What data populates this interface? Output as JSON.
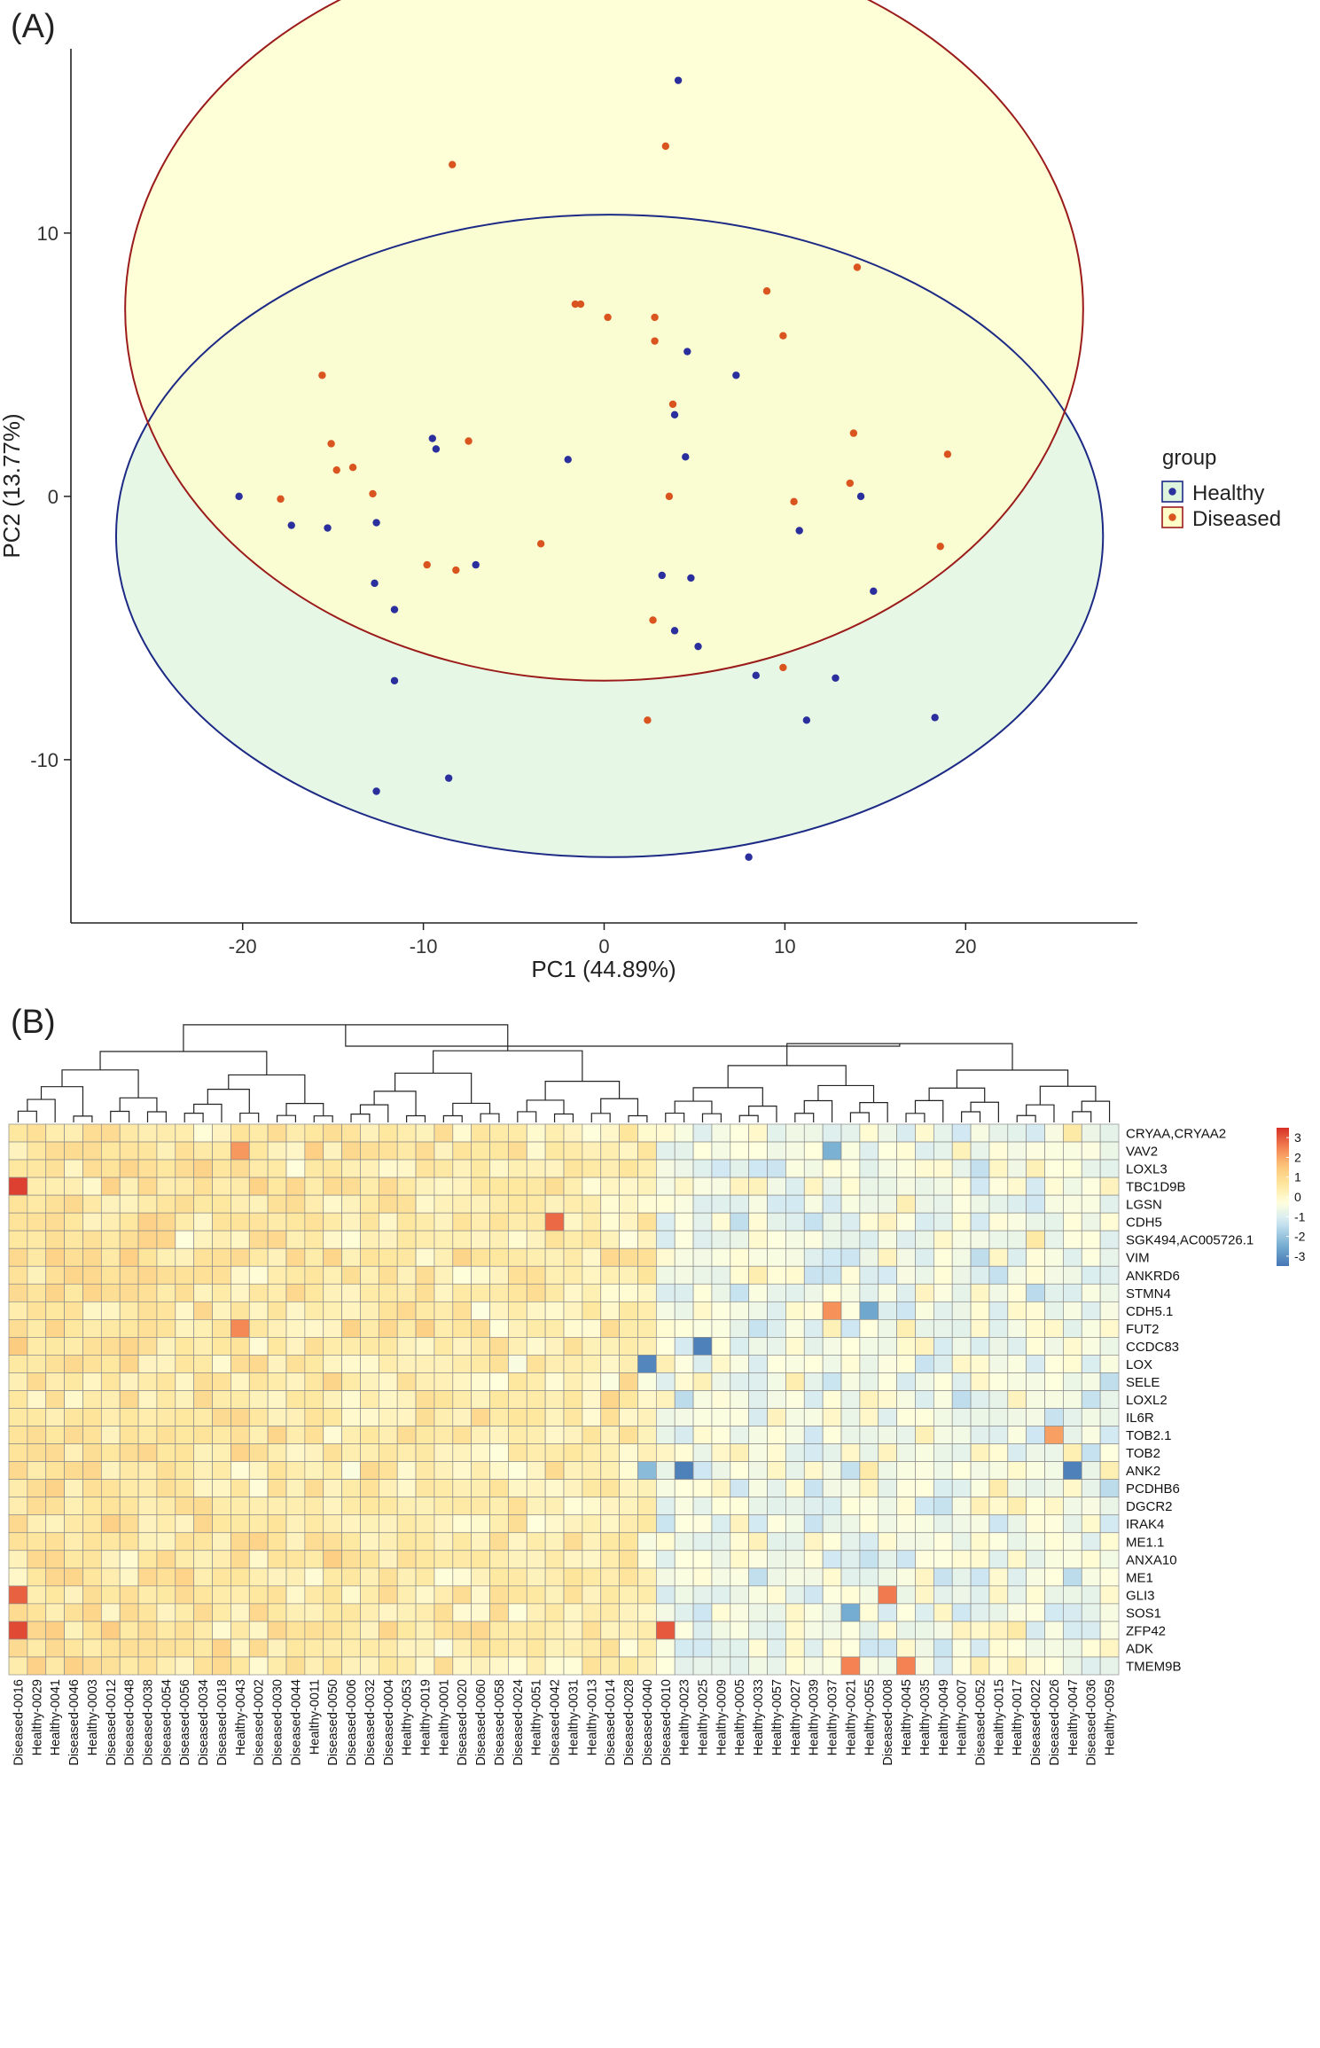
{
  "chart_data": [
    {
      "type": "scatter",
      "panel_label": "(A)",
      "xlabel": "PC1 (44.89%)",
      "ylabel": "PC2 (13.77%)",
      "xlim": [
        -29.5,
        29.5
      ],
      "ylim": [
        -16.2,
        17
      ],
      "xticks": [
        -20,
        -10,
        0,
        10,
        20
      ],
      "xtick_labels": [
        "-20",
        "-10",
        "0",
        "10",
        "20"
      ],
      "yticks": [
        -10,
        0,
        10
      ],
      "ytick_labels": [
        "-10",
        "0",
        "10"
      ],
      "grid": false,
      "legend_title": "group",
      "legend_position": "right",
      "series": [
        {
          "name": "Healthy",
          "color": "#2b2f9e",
          "ellipse_stroke": "#1c2a85",
          "ellipse_fill": "#dff4dc",
          "ellipse": {
            "cx": 0.3,
            "cy": -1.5,
            "rx": 27.3,
            "ry": 12.2
          },
          "points": [
            [
              4.1,
              15.8
            ],
            [
              -20.2,
              0.0
            ],
            [
              -17.3,
              -1.1
            ],
            [
              -15.3,
              -1.2
            ],
            [
              -12.6,
              -1.0
            ],
            [
              -9.5,
              2.2
            ],
            [
              -9.3,
              1.8
            ],
            [
              -12.7,
              -3.3
            ],
            [
              -11.6,
              -4.3
            ],
            [
              -11.6,
              -7.0
            ],
            [
              -12.6,
              -11.2
            ],
            [
              -8.6,
              -10.7
            ],
            [
              -7.1,
              -2.6
            ],
            [
              -2.0,
              1.4
            ],
            [
              3.2,
              -3.0
            ],
            [
              3.9,
              -5.1
            ],
            [
              4.5,
              1.5
            ],
            [
              4.6,
              5.5
            ],
            [
              4.8,
              -3.1
            ],
            [
              5.2,
              -5.7
            ],
            [
              3.9,
              3.1
            ],
            [
              7.3,
              4.6
            ],
            [
              8.4,
              -6.8
            ],
            [
              10.8,
              -1.3
            ],
            [
              11.2,
              -8.5
            ],
            [
              12.8,
              -6.9
            ],
            [
              14.2,
              0.0
            ],
            [
              14.9,
              -3.6
            ],
            [
              18.3,
              -8.4
            ],
            [
              8.0,
              -13.7
            ]
          ]
        },
        {
          "name": "Diseased",
          "color": "#d9541e",
          "ellipse_stroke": "#9b1b1b",
          "ellipse_fill": "#ffffc9",
          "ellipse": {
            "cx": 0.0,
            "cy": 7.1,
            "rx": 26.5,
            "ry": 14.1
          },
          "points": [
            [
              -8.4,
              12.6
            ],
            [
              3.4,
              13.3
            ],
            [
              14.0,
              8.7
            ],
            [
              9.0,
              7.8
            ],
            [
              9.9,
              6.1
            ],
            [
              -1.6,
              7.3
            ],
            [
              -1.3,
              7.3
            ],
            [
              0.2,
              6.8
            ],
            [
              2.8,
              6.8
            ],
            [
              2.8,
              5.9
            ],
            [
              -15.6,
              4.6
            ],
            [
              -15.1,
              2.0
            ],
            [
              -14.8,
              1.0
            ],
            [
              -13.9,
              1.1
            ],
            [
              -7.5,
              2.1
            ],
            [
              -12.8,
              0.1
            ],
            [
              -17.9,
              -0.1
            ],
            [
              3.8,
              3.5
            ],
            [
              3.6,
              0.0
            ],
            [
              10.5,
              -0.2
            ],
            [
              13.8,
              2.4
            ],
            [
              13.6,
              0.5
            ],
            [
              19.0,
              1.6
            ],
            [
              -9.8,
              -2.6
            ],
            [
              -8.2,
              -2.8
            ],
            [
              -3.5,
              -1.8
            ],
            [
              2.7,
              -4.7
            ],
            [
              18.6,
              -1.9
            ],
            [
              9.9,
              -6.5
            ],
            [
              2.4,
              -8.5
            ]
          ]
        }
      ]
    },
    {
      "type": "heatmap",
      "panel_label": "(B)",
      "scale_min": -3.5,
      "scale_max": 3.5,
      "legend_ticks": [
        3,
        2,
        1,
        0,
        -1,
        -2,
        -3
      ],
      "legend_tick_labels": [
        "3",
        "2",
        "1",
        "0",
        "-1",
        "-2",
        "-3"
      ],
      "rows": [
        "CRYAA,CRYAA2",
        "VAV2",
        "LOXL3",
        "TBC1D9B",
        "LGSN",
        "CDH5",
        "SGK494,AC005726.1",
        "VIM",
        "ANKRD6",
        "STMN4",
        "CDH5.1",
        "FUT2",
        "CCDC83",
        "LOX",
        "SELE",
        "LOXL2",
        "IL6R",
        "TOB2.1",
        "TOB2",
        "ANK2",
        "PCDHB6",
        "DGCR2",
        "IRAK4",
        "ME1.1",
        "ANXA10",
        "ME1",
        "GLI3",
        "SOS1",
        "ZFP42",
        "ADK",
        "TMEM9B"
      ],
      "columns": [
        "Diseased-0016",
        "Healthy-0029",
        "Healthy-0041",
        "Diseased-0046",
        "Healthy-0003",
        "Diseased-0012",
        "Diseased-0048",
        "Diseased-0038",
        "Diseased-0054",
        "Diseased-0056",
        "Diseased-0034",
        "Diseased-0018",
        "Healthy-0043",
        "Diseased-0002",
        "Diseased-0030",
        "Diseased-0044",
        "Healthy-0011",
        "Diseased-0050",
        "Diseased-0006",
        "Diseased-0032",
        "Diseased-0004",
        "Healthy-0053",
        "Healthy-0019",
        "Healthy-0001",
        "Diseased-0020",
        "Diseased-0060",
        "Diseased-0058",
        "Diseased-0024",
        "Healthy-0051",
        "Diseased-0042",
        "Healthy-0031",
        "Healthy-0013",
        "Diseased-0014",
        "Diseased-0028",
        "Diseased-0040",
        "Diseased-0010",
        "Healthy-0023",
        "Healthy-0025",
        "Healthy-0009",
        "Healthy-0005",
        "Healthy-0033",
        "Healthy-0057",
        "Healthy-0027",
        "Healthy-0039",
        "Healthy-0037",
        "Healthy-0021",
        "Healthy-0055",
        "Diseased-0008",
        "Healthy-0045",
        "Healthy-0035",
        "Healthy-0049",
        "Healthy-0007",
        "Diseased-0052",
        "Healthy-0015",
        "Healthy-0017",
        "Diseased-0022",
        "Diseased-0026",
        "Healthy-0047",
        "Diseased-0036",
        "Healthy-0059"
      ],
      "cluster_split_index": 35,
      "highlights": [
        {
          "row": "TBC1D9B",
          "column": "Diseased-0016",
          "value": 3.3
        },
        {
          "row": "ZFP42",
          "column": "Diseased-0016",
          "value": 3.2
        },
        {
          "row": "ZFP42",
          "column": "Diseased-0010",
          "value": 3.0
        },
        {
          "row": "GLI3",
          "column": "Diseased-0016",
          "value": 2.9
        },
        {
          "row": "CDH5",
          "column": "Diseased-0042",
          "value": 2.8
        },
        {
          "row": "GLI3",
          "column": "Diseased-0008",
          "value": 2.6
        },
        {
          "row": "TMEM9B",
          "column": "Healthy-0021",
          "value": 2.5
        },
        {
          "row": "TMEM9B",
          "column": "Healthy-0045",
          "value": 2.5
        },
        {
          "row": "CDH5.1",
          "column": "Healthy-0037",
          "value": 2.3
        },
        {
          "row": "FUT2",
          "column": "Healthy-0043",
          "value": 2.4
        },
        {
          "row": "VAV2",
          "column": "Healthy-0043",
          "value": 2.2
        },
        {
          "row": "TOB2.1",
          "column": "Diseased-0026",
          "value": 2.1
        },
        {
          "row": "CCDC83",
          "column": "Healthy-0025",
          "value": -3.3
        },
        {
          "row": "LOX",
          "column": "Diseased-0040",
          "value": -3.2
        },
        {
          "row": "ANK2",
          "column": "Healthy-0023",
          "value": -3.3
        },
        {
          "row": "ANK2",
          "column": "Healthy-0047",
          "value": -3.3
        },
        {
          "row": "CDH5.1",
          "column": "Healthy-0055",
          "value": -2.6
        },
        {
          "row": "SOS1",
          "column": "Healthy-0021",
          "value": -2.5
        },
        {
          "row": "VAV2",
          "column": "Healthy-0037",
          "value": -2.4
        },
        {
          "row": "ANK2",
          "column": "Diseased-0040",
          "value": -2.2
        }
      ]
    }
  ]
}
